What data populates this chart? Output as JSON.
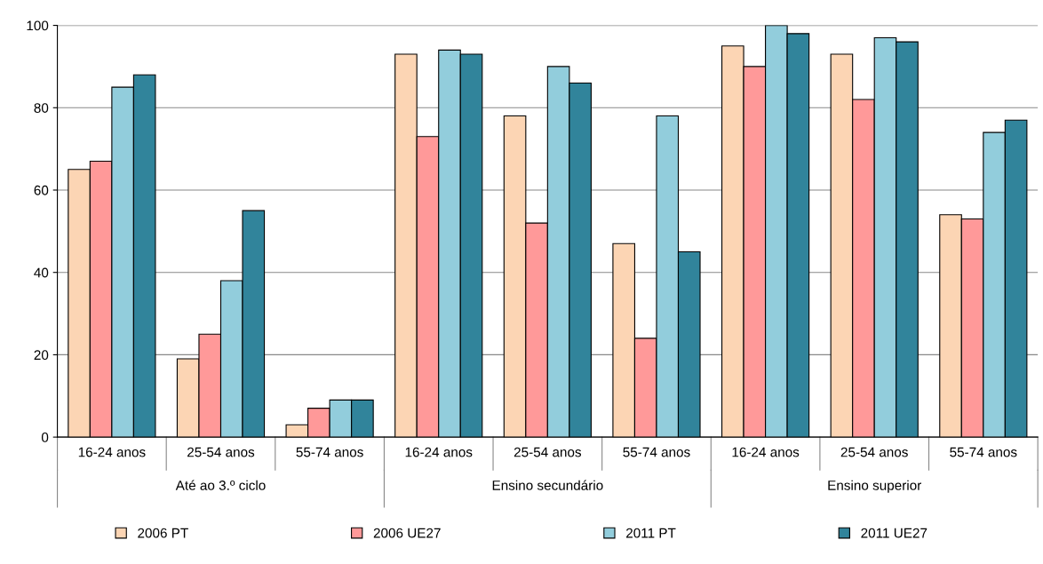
{
  "chart_data": {
    "type": "bar",
    "categories": [
      "16-24 anos",
      "25-54 anos",
      "55-74 anos",
      "16-24 anos",
      "25-54 anos",
      "55-74 anos",
      "16-24 anos",
      "25-54 anos",
      "55-74 anos"
    ],
    "series": [
      {
        "name": "2006 PT",
        "color": "#fcd5b4",
        "values": [
          65,
          19,
          3,
          93,
          78,
          47,
          95,
          93,
          54
        ]
      },
      {
        "name": "2006 UE27",
        "color": "#ff9999",
        "values": [
          67,
          25,
          7,
          73,
          52,
          24,
          90,
          82,
          53
        ]
      },
      {
        "name": "2011 PT",
        "color": "#92cddc",
        "values": [
          85,
          38,
          9,
          94,
          90,
          78,
          100,
          97,
          74
        ]
      },
      {
        "name": "2011 UE27",
        "color": "#31849b",
        "values": [
          88,
          55,
          9,
          93,
          86,
          45,
          98,
          96,
          77
        ]
      }
    ],
    "annotations": [
      "Até ao 3.º ciclo",
      "Ensino secundário",
      "Ensino superior"
    ],
    "ylim": [
      0,
      100
    ],
    "yticks": [
      0,
      20,
      40,
      60,
      80,
      100
    ],
    "grid": "y",
    "legend": "bottom"
  }
}
